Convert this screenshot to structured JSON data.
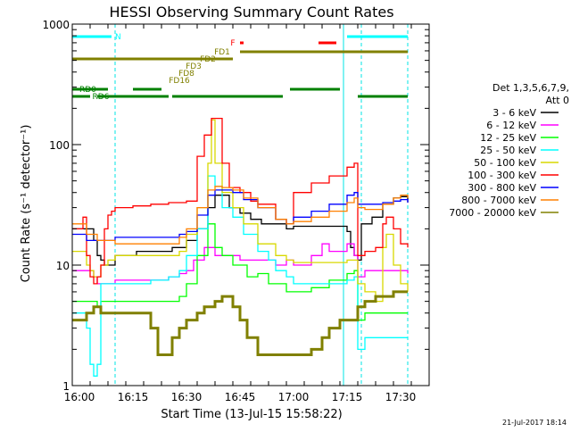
{
  "chart_data": {
    "type": "line",
    "title": "HESSI Observing Summary Count Rates",
    "xlabel": "Start Time (13-Jul-15 15:58:22)",
    "ylabel": "Count Rate (s⁻¹ detector⁻¹)",
    "y_scale": "log",
    "xlim": [
      "15:58",
      "17:38"
    ],
    "ylim": [
      1,
      1000
    ],
    "grid": false,
    "legend_position": "right",
    "x_ticks": [
      "16:00",
      "16:15",
      "16:30",
      "16:45",
      "17:00",
      "17:15",
      "17:30"
    ],
    "y_ticks": [
      "1",
      "10",
      "100",
      "1000"
    ],
    "legend": {
      "header": "Det 1,3,5,6,7,9,",
      "header2": "Att 0",
      "entries": [
        {
          "label": "3 - 6 keV",
          "color": "#000000"
        },
        {
          "label": "6 - 12 keV",
          "color": "#ff00ff"
        },
        {
          "label": "12 - 25 keV",
          "color": "#00ff00"
        },
        {
          "label": "25 - 50 keV",
          "color": "#00ffff"
        },
        {
          "label": "50 - 100 keV",
          "color": "#d8d800"
        },
        {
          "label": "100 - 300 keV",
          "color": "#ff0000"
        },
        {
          "label": "300 - 800 keV",
          "color": "#0000ff"
        },
        {
          "label": "800 - 7000 keV",
          "color": "#ff8000"
        },
        {
          "label": "7000 - 20000 keV",
          "color": "#808000"
        }
      ]
    },
    "series": [
      {
        "name": "3 - 6 keV",
        "color": "#000000",
        "x": [
          "15:58",
          "16:04",
          "16:05",
          "16:06",
          "16:07",
          "16:09",
          "16:10",
          "16:15",
          "16:16",
          "16:19",
          "16:20",
          "16:25",
          "16:26",
          "16:30",
          "16:33",
          "16:36",
          "16:38",
          "16:42",
          "16:45",
          "16:48",
          "16:51",
          "16:55",
          "16:58",
          "17:00",
          "17:05",
          "17:10",
          "17:15",
          "17:16",
          "17:17",
          "17:18",
          "17:19",
          "17:22",
          "17:25",
          "17:28",
          "17:30",
          "17:32"
        ],
        "y": [
          20,
          16,
          12,
          11,
          10,
          10,
          12,
          12,
          13,
          13,
          13,
          13,
          14,
          16,
          20,
          30,
          38,
          30,
          27,
          24,
          22,
          22,
          20,
          21,
          21,
          21,
          19,
          14,
          12,
          11,
          22,
          25,
          32,
          36,
          37,
          33
        ]
      },
      {
        "name": "6 - 12 keV",
        "color": "#ff00ff",
        "x": [
          "15:58",
          "16:04",
          "16:05",
          "16:10",
          "16:15",
          "16:20",
          "16:25",
          "16:28",
          "16:30",
          "16:32",
          "16:35",
          "16:38",
          "16:41",
          "16:45",
          "16:50",
          "16:55",
          "16:58",
          "17:00",
          "17:05",
          "17:08",
          "17:10",
          "17:15",
          "17:17",
          "17:18",
          "17:20",
          "17:25",
          "17:30",
          "17:32"
        ],
        "y": [
          9,
          8,
          7,
          7.5,
          7.5,
          7.5,
          8,
          8.5,
          9,
          11,
          14,
          12,
          12,
          11,
          11,
          10,
          11,
          10,
          12,
          15,
          13,
          15,
          12,
          8,
          9,
          9,
          9,
          8.5
        ]
      },
      {
        "name": "12 - 25 keV",
        "color": "#00ff00",
        "x": [
          "15:58",
          "16:05",
          "16:06",
          "16:10",
          "16:15",
          "16:20",
          "16:25",
          "16:28",
          "16:30",
          "16:33",
          "16:36",
          "16:38",
          "16:40",
          "16:43",
          "16:47",
          "16:50",
          "16:53",
          "16:58",
          "17:00",
          "17:05",
          "17:10",
          "17:15",
          "17:17",
          "17:18",
          "17:20",
          "17:25",
          "17:30",
          "17:32"
        ],
        "y": [
          5,
          4.5,
          5,
          5,
          5,
          5,
          5,
          5.5,
          7,
          12,
          22,
          14,
          12,
          10,
          8,
          8.5,
          7,
          6,
          6,
          6.5,
          7.5,
          8.5,
          9,
          3.5,
          4,
          4,
          4,
          4
        ]
      },
      {
        "name": "25 - 50 keV",
        "color": "#00ffff",
        "x": [
          "15:58",
          "16:02",
          "16:03",
          "16:04",
          "16:05",
          "16:06",
          "16:10",
          "16:15",
          "16:20",
          "16:25",
          "16:28",
          "16:30",
          "16:33",
          "16:36",
          "16:38",
          "16:40",
          "16:43",
          "16:46",
          "16:50",
          "16:53",
          "16:55",
          "16:58",
          "17:00",
          "17:05",
          "17:10",
          "17:15",
          "17:17",
          "17:18",
          "17:20",
          "17:25",
          "17:28",
          "17:30",
          "17:32"
        ],
        "y": [
          4,
          3,
          1.5,
          1.2,
          1.5,
          7,
          7,
          7,
          7.5,
          8,
          9,
          12,
          20,
          55,
          45,
          30,
          25,
          18,
          13,
          11,
          9,
          8,
          7,
          7,
          7,
          7.5,
          8,
          2,
          2.5,
          2.5,
          2.5,
          2.5,
          2.5
        ]
      },
      {
        "name": "50 - 100 keV",
        "color": "#d8d800",
        "x": [
          "15:58",
          "16:02",
          "16:03",
          "16:04",
          "16:05",
          "16:06",
          "16:08",
          "16:10",
          "16:15",
          "16:20",
          "16:25",
          "16:28",
          "16:30",
          "16:33",
          "16:36",
          "16:37",
          "16:38",
          "16:40",
          "16:43",
          "16:46",
          "16:50",
          "16:55",
          "16:58",
          "17:00",
          "17:05",
          "17:10",
          "17:15",
          "17:17",
          "17:18",
          "17:20",
          "17:23",
          "17:25",
          "17:26",
          "17:28",
          "17:30",
          "17:32"
        ],
        "y": [
          13,
          10,
          9,
          8,
          8,
          10,
          11,
          12,
          12,
          12,
          12,
          13,
          18,
          30,
          70,
          160,
          70,
          40,
          30,
          22,
          15,
          12,
          11,
          10.5,
          10.5,
          10.5,
          11,
          11,
          7,
          6,
          5,
          14,
          18,
          10,
          7,
          6
        ]
      },
      {
        "name": "100 - 300 keV",
        "color": "#ff0000",
        "x": [
          "15:58",
          "16:01",
          "16:02",
          "16:03",
          "16:04",
          "16:05",
          "16:06",
          "16:07",
          "16:08",
          "16:09",
          "16:10",
          "16:15",
          "16:20",
          "16:25",
          "16:28",
          "16:30",
          "16:33",
          "16:35",
          "16:37",
          "16:40",
          "16:42",
          "16:45",
          "16:48",
          "16:50",
          "16:55",
          "16:58",
          "17:00",
          "17:05",
          "17:10",
          "17:15",
          "17:17",
          "17:18",
          "17:20",
          "17:23",
          "17:25",
          "17:26",
          "17:28",
          "17:30",
          "17:32"
        ],
        "y": [
          20,
          25,
          12,
          8,
          7,
          8,
          10,
          20,
          26,
          28,
          30,
          31,
          32,
          33,
          33,
          34,
          80,
          120,
          165,
          70,
          44,
          40,
          34,
          32,
          24,
          22,
          40,
          48,
          55,
          65,
          70,
          12,
          13,
          14,
          22,
          25,
          20,
          15,
          14
        ]
      },
      {
        "name": "300 - 800 keV",
        "color": "#0000ff",
        "x": [
          "15:58",
          "16:02",
          "16:05",
          "16:10",
          "16:15",
          "16:20",
          "16:25",
          "16:28",
          "16:30",
          "16:33",
          "16:36",
          "16:38",
          "16:40",
          "16:43",
          "16:46",
          "16:50",
          "16:55",
          "16:58",
          "17:00",
          "17:05",
          "17:10",
          "17:15",
          "17:17",
          "17:18",
          "17:20",
          "17:25",
          "17:28",
          "17:30",
          "17:32"
        ],
        "y": [
          18,
          16,
          16,
          17,
          17,
          17,
          17,
          18,
          19,
          26,
          38,
          42,
          42,
          40,
          35,
          30,
          24,
          22,
          25,
          28,
          32,
          38,
          40,
          32,
          32,
          33,
          34,
          35,
          33
        ]
      },
      {
        "name": "800 - 7000 keV",
        "color": "#ff8000",
        "x": [
          "15:58",
          "16:02",
          "16:05",
          "16:10",
          "16:15",
          "16:20",
          "16:25",
          "16:28",
          "16:30",
          "16:33",
          "16:36",
          "16:38",
          "16:40",
          "16:43",
          "16:46",
          "16:50",
          "16:55",
          "16:58",
          "17:00",
          "17:05",
          "17:10",
          "17:15",
          "17:17",
          "17:18",
          "17:20",
          "17:25",
          "17:28",
          "17:30",
          "17:32"
        ],
        "y": [
          22,
          18,
          16,
          15,
          15,
          15,
          15,
          17,
          20,
          30,
          42,
          45,
          44,
          42,
          36,
          30,
          24,
          22,
          23,
          25,
          28,
          33,
          36,
          30,
          29,
          32,
          36,
          38,
          36
        ]
      },
      {
        "name": "7000 - 20000 keV",
        "color": "#808000",
        "x": [
          "15:58",
          "16:02",
          "16:04",
          "16:06",
          "16:10",
          "16:15",
          "16:18",
          "16:20",
          "16:22",
          "16:25",
          "16:26",
          "16:28",
          "16:30",
          "16:33",
          "16:35",
          "16:38",
          "16:40",
          "16:43",
          "16:45",
          "16:47",
          "16:50",
          "16:55",
          "17:00",
          "17:05",
          "17:08",
          "17:10",
          "17:13",
          "17:15",
          "17:17",
          "17:18",
          "17:20",
          "17:23",
          "17:25",
          "17:28",
          "17:30",
          "17:32"
        ],
        "y": [
          3.5,
          4,
          4.5,
          4,
          4,
          4,
          4,
          3,
          1.8,
          1.8,
          2.5,
          3,
          3.5,
          4,
          4.5,
          5,
          5.5,
          4.5,
          3.5,
          2.5,
          1.8,
          1.8,
          1.8,
          2,
          2.5,
          3,
          3.5,
          3.5,
          3.5,
          4.5,
          5,
          5.5,
          5.5,
          6,
          6,
          6
        ]
      }
    ],
    "flags": [
      {
        "label": "N",
        "color": "#00ffff",
        "intervals": [
          [
            "15:58",
            "16:09"
          ],
          [
            "17:15",
            "17:32"
          ]
        ],
        "label_at": "16:10"
      },
      {
        "label": "F",
        "color": "#ff0000",
        "intervals": [
          [
            "16:45",
            "16:46"
          ],
          [
            "17:07",
            "17:12"
          ]
        ],
        "label_at": "16:43"
      },
      {
        "label": "FD1",
        "color": "#808000",
        "intervals": [
          [
            "16:45",
            "17:32"
          ]
        ],
        "label_at": "16:40"
      },
      {
        "label": "FD2",
        "color": "#808000",
        "intervals": [
          [
            "15:58",
            "16:43"
          ]
        ],
        "label_at": "16:36"
      },
      {
        "label": "FD3",
        "color": "#808000",
        "intervals": [],
        "label_at": "16:32"
      },
      {
        "label": "FD8",
        "color": "#808000",
        "intervals": [],
        "label_at": "16:30"
      },
      {
        "label": "FD16",
        "color": "#808000",
        "intervals": [],
        "label_at": "16:28"
      },
      {
        "label": "RD0",
        "color": "#008000",
        "intervals": [
          [
            "15:58",
            "16:08"
          ],
          [
            "16:15",
            "16:23"
          ],
          [
            "16:59",
            "17:13"
          ]
        ],
        "label_at": "16:00"
      },
      {
        "label": "RD6",
        "color": "#008000",
        "intervals": [
          [
            "15:58",
            "16:03"
          ],
          [
            "16:05",
            "16:25"
          ],
          [
            "16:26",
            "16:57"
          ],
          [
            "17:18",
            "17:32"
          ]
        ],
        "label_at": "16:06"
      }
    ],
    "vlines": [
      {
        "type": "dashed",
        "x": [
          "15:58",
          "16:10",
          "17:19",
          "17:32"
        ]
      },
      {
        "type": "solid",
        "x": [
          "17:14"
        ]
      }
    ]
  },
  "footer": {
    "date_stamp": "21-Jul-2017 18:14"
  }
}
